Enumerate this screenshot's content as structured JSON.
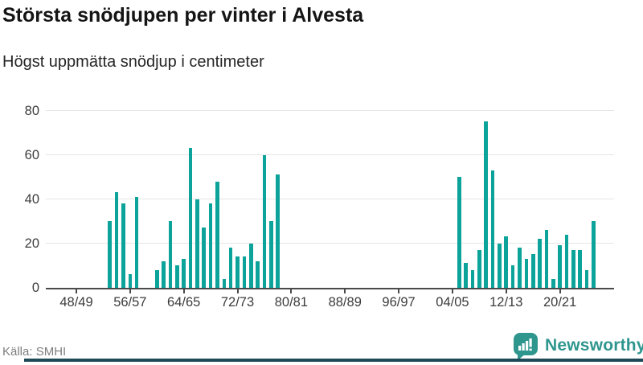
{
  "header": {
    "title": "Största snödjupen per vinter i Alvesta",
    "subtitle": "Högst uppmätta snödjup i centimeter"
  },
  "footer": {
    "source": "Källa: SMHI",
    "brand": "Newsworthy"
  },
  "colors": {
    "bar": "#0ba39a",
    "brand_teal": "#2f968e",
    "bottom_accent": "#1e4956",
    "grid": "#e6e6e6",
    "axis": "#4a4a4a",
    "title_text": "#151515",
    "subtitle_text": "#262626",
    "tick_text": "#3c3c3c",
    "source_text": "#7e7e7e"
  },
  "chart_data": {
    "type": "bar",
    "title": "Största snödjupen per vinter i Alvesta",
    "subtitle": "Högst uppmätta snödjup i centimeter",
    "unit": "cm",
    "xlabel": "",
    "ylabel": "",
    "ylim": [
      0,
      80
    ],
    "yticks": [
      0,
      20,
      40,
      60,
      80
    ],
    "xtick_labels": [
      "48/49",
      "56/57",
      "64/65",
      "72/73",
      "80/81",
      "88/89",
      "96/97",
      "04/05",
      "12/13",
      "20/21"
    ],
    "grid": "horizontal",
    "legend": false,
    "series": [
      {
        "name": "Högst uppmätta snödjup (cm)",
        "points": [
          {
            "season": "53/54",
            "value": 30
          },
          {
            "season": "54/55",
            "value": 43
          },
          {
            "season": "55/56",
            "value": 38
          },
          {
            "season": "56/57",
            "value": 6
          },
          {
            "season": "57/58",
            "value": 41
          },
          {
            "season": "60/61",
            "value": 8
          },
          {
            "season": "61/62",
            "value": 12
          },
          {
            "season": "62/63",
            "value": 30
          },
          {
            "season": "63/64",
            "value": 10
          },
          {
            "season": "64/65",
            "value": 13
          },
          {
            "season": "65/66",
            "value": 63
          },
          {
            "season": "66/67",
            "value": 40
          },
          {
            "season": "67/68",
            "value": 27
          },
          {
            "season": "68/69",
            "value": 38
          },
          {
            "season": "69/70",
            "value": 48
          },
          {
            "season": "70/71",
            "value": 4
          },
          {
            "season": "71/72",
            "value": 18
          },
          {
            "season": "72/73",
            "value": 14
          },
          {
            "season": "73/74",
            "value": 14
          },
          {
            "season": "74/75",
            "value": 20
          },
          {
            "season": "75/76",
            "value": 12
          },
          {
            "season": "76/77",
            "value": 60
          },
          {
            "season": "77/78",
            "value": 30
          },
          {
            "season": "78/79",
            "value": 51
          },
          {
            "season": "05/06",
            "value": 50
          },
          {
            "season": "06/07",
            "value": 11
          },
          {
            "season": "07/08",
            "value": 8
          },
          {
            "season": "08/09",
            "value": 17
          },
          {
            "season": "09/10",
            "value": 75
          },
          {
            "season": "10/11",
            "value": 53
          },
          {
            "season": "11/12",
            "value": 20
          },
          {
            "season": "12/13",
            "value": 23
          },
          {
            "season": "13/14",
            "value": 10
          },
          {
            "season": "14/15",
            "value": 18
          },
          {
            "season": "15/16",
            "value": 13
          },
          {
            "season": "16/17",
            "value": 15
          },
          {
            "season": "17/18",
            "value": 22
          },
          {
            "season": "18/19",
            "value": 26
          },
          {
            "season": "19/20",
            "value": 4
          },
          {
            "season": "20/21",
            "value": 19
          },
          {
            "season": "21/22",
            "value": 24
          },
          {
            "season": "22/23",
            "value": 17
          },
          {
            "season": "23/24",
            "value": 17
          },
          {
            "season": "24/25",
            "value": 8
          },
          {
            "season": "25/26",
            "value": 30
          }
        ]
      }
    ]
  }
}
